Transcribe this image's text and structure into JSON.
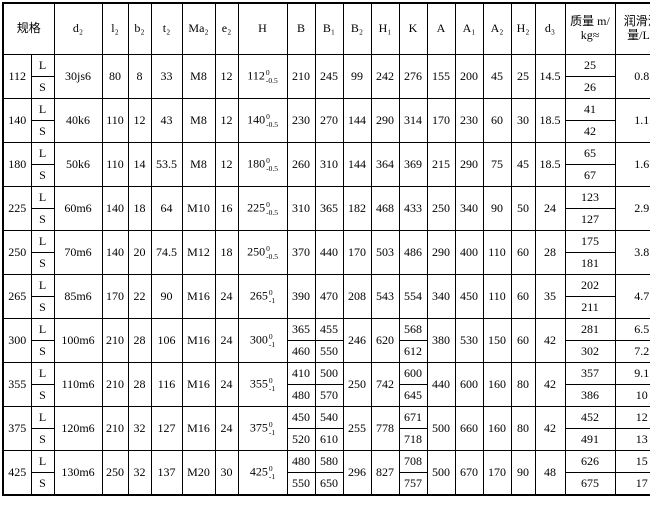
{
  "table": {
    "header": {
      "spec": "规格",
      "col_labels": [
        "d₂",
        "l₂",
        "b₂",
        "t₂",
        "Ma₂",
        "e₂",
        "H",
        "B",
        "B₁",
        "B₂",
        "H₁",
        "K",
        "A",
        "A₁",
        "A₂",
        "H₂",
        "d₃"
      ],
      "mass": "质量 m/\nkg≈",
      "oil": "润滑油\n量/L≈"
    },
    "rows": [
      {
        "size": "112",
        "variants": [
          "L",
          "S"
        ],
        "d2": "30js6",
        "l2": "80",
        "b2": "8",
        "t2": "33",
        "Ma2": "M8",
        "e2": "12",
        "H": {
          "v": "112",
          "tol_top": "0",
          "tol_bot": "-0.5"
        },
        "B": "210",
        "B1": "245",
        "B2": "99",
        "H1": "242",
        "K": "276",
        "A": "155",
        "A1": "200",
        "A2": "45",
        "H2": "25",
        "d3": "14.5",
        "mass": [
          "25",
          "26"
        ],
        "oil": "0.8"
      },
      {
        "size": "140",
        "variants": [
          "L",
          "S"
        ],
        "d2": "40k6",
        "l2": "110",
        "b2": "12",
        "t2": "43",
        "Ma2": "M8",
        "e2": "12",
        "H": {
          "v": "140",
          "tol_top": "0",
          "tol_bot": "-0.5"
        },
        "B": "230",
        "B1": "270",
        "B2": "144",
        "H1": "290",
        "K": "314",
        "A": "170",
        "A1": "230",
        "A2": "60",
        "H2": "30",
        "d3": "18.5",
        "mass": [
          "41",
          "42"
        ],
        "oil": "1.1"
      },
      {
        "size": "180",
        "variants": [
          "L",
          "S"
        ],
        "d2": "50k6",
        "l2": "110",
        "b2": "14",
        "t2": "53.5",
        "Ma2": "M8",
        "e2": "12",
        "H": {
          "v": "180",
          "tol_top": "0",
          "tol_bot": "-0.5"
        },
        "B": "260",
        "B1": "310",
        "B2": "144",
        "H1": "364",
        "K": "369",
        "A": "215",
        "A1": "290",
        "A2": "75",
        "H2": "45",
        "d3": "18.5",
        "mass": [
          "65",
          "67"
        ],
        "oil": "1.6"
      },
      {
        "size": "225",
        "variants": [
          "L",
          "S"
        ],
        "d2": "60m6",
        "l2": "140",
        "b2": "18",
        "t2": "64",
        "Ma2": "M10",
        "e2": "16",
        "H": {
          "v": "225",
          "tol_top": "0",
          "tol_bot": "-0.5"
        },
        "B": "310",
        "B1": "365",
        "B2": "182",
        "H1": "468",
        "K": "433",
        "A": "250",
        "A1": "340",
        "A2": "90",
        "H2": "50",
        "d3": "24",
        "mass": [
          "123",
          "127"
        ],
        "oil": "2.9"
      },
      {
        "size": "250",
        "variants": [
          "L",
          "S"
        ],
        "d2": "70m6",
        "l2": "140",
        "b2": "20",
        "t2": "74.5",
        "Ma2": "M12",
        "e2": "18",
        "H": {
          "v": "250",
          "tol_top": "0",
          "tol_bot": "-0.5"
        },
        "B": "370",
        "B1": "440",
        "B2": "170",
        "H1": "503",
        "K": "486",
        "A": "290",
        "A1": "400",
        "A2": "110",
        "H2": "60",
        "d3": "28",
        "mass": [
          "175",
          "181"
        ],
        "oil": "3.8"
      },
      {
        "size": "265",
        "variants": [
          "L",
          "S"
        ],
        "d2": "85m6",
        "l2": "170",
        "b2": "22",
        "t2": "90",
        "Ma2": "M16",
        "e2": "24",
        "H": {
          "v": "265",
          "tol_top": "0",
          "tol_bot": "-1"
        },
        "B": "390",
        "B1": "470",
        "B2": "208",
        "H1": "543",
        "K": "554",
        "A": "340",
        "A1": "450",
        "A2": "110",
        "H2": "60",
        "d3": "35",
        "mass": [
          "202",
          "211"
        ],
        "oil": "4.7"
      },
      {
        "size": "300",
        "variants": [
          "L",
          "S"
        ],
        "d2": "100m6",
        "l2": "210",
        "b2": "28",
        "t2": "106",
        "Ma2": "M16",
        "e2": "24",
        "H": {
          "v": "300",
          "tol_top": "0",
          "tol_bot": "-1"
        },
        "B": [
          "365",
          "460"
        ],
        "B1": [
          "455",
          "550"
        ],
        "B2": "246",
        "H1": "620",
        "K": [
          "568",
          "612"
        ],
        "A": "380",
        "A1": "530",
        "A2": "150",
        "H2": "60",
        "d3": "42",
        "mass": [
          "281",
          "302"
        ],
        "oil": [
          "6.5",
          "7.2"
        ]
      },
      {
        "size": "355",
        "variants": [
          "L",
          "S"
        ],
        "d2": "110m6",
        "l2": "210",
        "b2": "28",
        "t2": "116",
        "Ma2": "M16",
        "e2": "24",
        "H": {
          "v": "355",
          "tol_top": "0",
          "tol_bot": "-1"
        },
        "B": [
          "410",
          "480"
        ],
        "B1": [
          "500",
          "570"
        ],
        "B2": "250",
        "H1": "742",
        "K": [
          "600",
          "645"
        ],
        "A": "440",
        "A1": "600",
        "A2": "160",
        "H2": "80",
        "d3": "42",
        "mass": [
          "357",
          "386"
        ],
        "oil": [
          "9.1",
          "10"
        ]
      },
      {
        "size": "375",
        "variants": [
          "L",
          "S"
        ],
        "d2": "120m6",
        "l2": "210",
        "b2": "32",
        "t2": "127",
        "Ma2": "M16",
        "e2": "24",
        "H": {
          "v": "375",
          "tol_top": "0",
          "tol_bot": "-1"
        },
        "B": [
          "450",
          "520"
        ],
        "B1": [
          "540",
          "610"
        ],
        "B2": "255",
        "H1": "778",
        "K": [
          "671",
          "718"
        ],
        "A": "500",
        "A1": "660",
        "A2": "160",
        "H2": "80",
        "d3": "42",
        "mass": [
          "452",
          "491"
        ],
        "oil": [
          "12",
          "13"
        ]
      },
      {
        "size": "425",
        "variants": [
          "L",
          "S"
        ],
        "d2": "130m6",
        "l2": "250",
        "b2": "32",
        "t2": "137",
        "Ma2": "M20",
        "e2": "30",
        "H": {
          "v": "425",
          "tol_top": "0",
          "tol_bot": "-1"
        },
        "B": [
          "480",
          "550"
        ],
        "B1": [
          "580",
          "650"
        ],
        "B2": "296",
        "H1": "827",
        "K": [
          "708",
          "757"
        ],
        "A": "500",
        "A1": "670",
        "A2": "170",
        "H2": "90",
        "d3": "48",
        "mass": [
          "626",
          "675"
        ],
        "oil": [
          "15",
          "17"
        ]
      }
    ]
  }
}
